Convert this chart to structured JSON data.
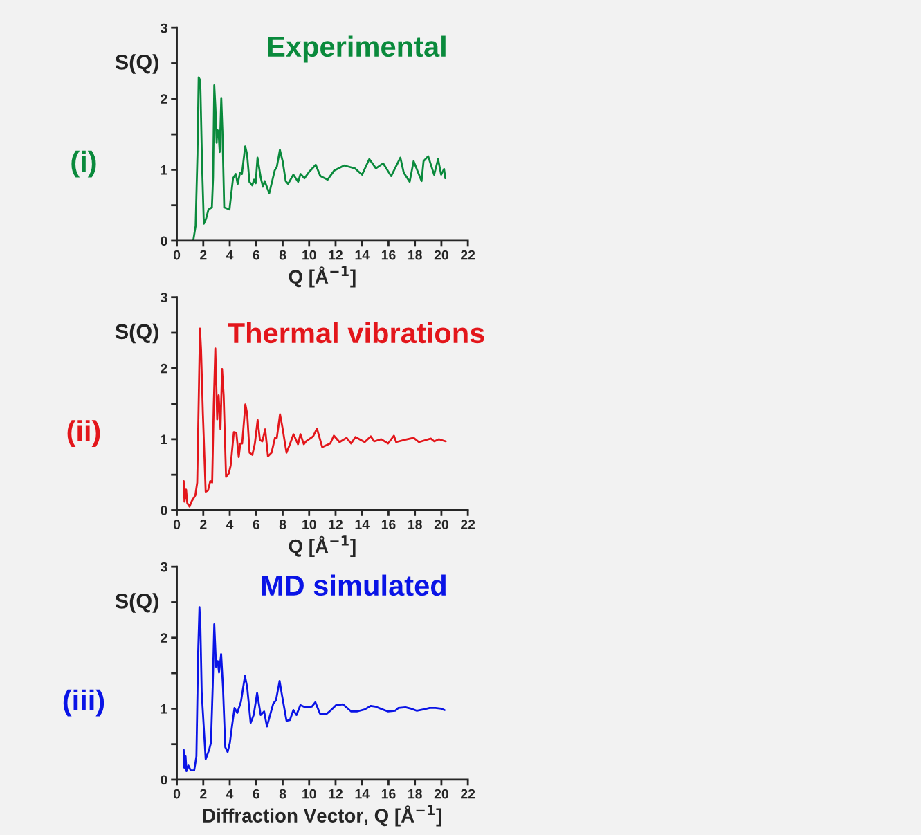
{
  "chart_data": [
    {
      "type": "line",
      "title": "Experimental",
      "ylabel": "S(Q)",
      "xlabel": "Q [Å$^{−1}$]",
      "annotations": [
        "(i)"
      ],
      "xlim": [
        0,
        22
      ],
      "xticks": [
        0,
        2,
        4,
        6,
        8,
        10,
        12,
        14,
        16,
        18,
        20,
        22
      ],
      "ylim": [
        0,
        3
      ],
      "yticks": [
        0,
        {
          "value": 0.5,
          "label": null
        },
        1,
        {
          "value": 1.5,
          "label": null
        },
        2,
        {
          "value": 2.5,
          "label": null
        },
        3
      ],
      "grid": false,
      "legend": false,
      "series": [
        {
          "color": "#0a8a3c",
          "x": [
            1.24,
            1.42,
            1.56,
            1.65,
            1.77,
            1.91,
            2.04,
            2.21,
            2.39,
            2.65,
            2.74,
            2.83,
            2.92,
            3.01,
            3.06,
            3.15,
            3.24,
            3.36,
            3.45,
            3.58,
            3.98,
            4.25,
            4.46,
            4.6,
            4.78,
            4.92,
            5.17,
            5.31,
            5.49,
            5.7,
            5.84,
            5.96,
            6.1,
            6.34,
            6.51,
            6.64,
            6.99,
            7.4,
            7.56,
            7.79,
            8.0,
            8.23,
            8.41,
            8.81,
            9.17,
            9.35,
            9.65,
            10.0,
            10.5,
            10.85,
            11.4,
            11.9,
            12.65,
            13.45,
            14.0,
            14.55,
            15.05,
            15.6,
            16.2,
            16.9,
            17.15,
            17.6,
            17.9,
            18.5,
            18.65,
            19.0,
            19.45,
            19.75,
            19.98,
            20.2,
            20.3
          ],
          "values": [
            0,
            0.21,
            1.22,
            2.3,
            2.26,
            1.06,
            0.24,
            0.31,
            0.44,
            0.47,
            0.89,
            2.19,
            1.87,
            1.38,
            1.56,
            1.54,
            1.25,
            2.01,
            1.54,
            0.47,
            0.44,
            0.88,
            0.94,
            0.8,
            0.96,
            0.94,
            1.33,
            1.22,
            0.83,
            0.78,
            0.86,
            0.81,
            1.17,
            0.89,
            0.76,
            0.84,
            0.67,
            0.99,
            1.04,
            1.28,
            1.12,
            0.84,
            0.8,
            0.93,
            0.83,
            0.94,
            0.88,
            0.97,
            1.07,
            0.91,
            0.86,
            0.99,
            1.06,
            1.02,
            0.93,
            1.15,
            1.02,
            1.09,
            0.91,
            1.17,
            0.96,
            0.83,
            1.12,
            0.84,
            1.12,
            1.19,
            0.93,
            1.15,
            0.93,
            1.01,
            0.88
          ]
        }
      ]
    },
    {
      "type": "line",
      "title": "Thermal vibrations",
      "ylabel": "S(Q)",
      "xlabel": "Q [Å$^{−1}$]",
      "annotations": [
        "(ii)"
      ],
      "xlim": [
        0,
        22
      ],
      "xticks": [
        0,
        2,
        4,
        6,
        8,
        10,
        12,
        14,
        16,
        18,
        20,
        22
      ],
      "ylim": [
        0,
        3
      ],
      "yticks": [
        0,
        {
          "value": 0.5,
          "label": null
        },
        1,
        {
          "value": 1.5,
          "label": null
        },
        2,
        {
          "value": 2.5,
          "label": null
        },
        3
      ],
      "grid": false,
      "legend": false,
      "series": [
        {
          "color": "#e3161b",
          "x": [
            0.52,
            0.58,
            0.7,
            0.79,
            0.96,
            1.13,
            1.4,
            1.54,
            1.66,
            1.75,
            1.83,
            1.97,
            2.18,
            2.36,
            2.53,
            2.67,
            2.79,
            2.91,
            3.05,
            3.16,
            3.3,
            3.42,
            3.54,
            3.72,
            3.93,
            4.07,
            4.31,
            4.5,
            4.68,
            4.8,
            4.94,
            5.18,
            5.32,
            5.5,
            5.71,
            5.9,
            6.11,
            6.28,
            6.46,
            6.68,
            6.89,
            7.16,
            7.42,
            7.56,
            7.8,
            7.98,
            8.29,
            8.55,
            8.82,
            9.16,
            9.34,
            9.6,
            9.77,
            10.3,
            10.59,
            10.99,
            11.6,
            11.87,
            12.3,
            12.83,
            13.18,
            13.5,
            14.2,
            14.66,
            14.92,
            15.45,
            15.97,
            16.41,
            16.58,
            17.2,
            17.9,
            18.3,
            19.2,
            19.46,
            19.8,
            20.33
          ],
          "values": [
            0.41,
            0.12,
            0.29,
            0.1,
            0.05,
            0.13,
            0.21,
            0.39,
            1.62,
            2.56,
            2.27,
            1.36,
            0.26,
            0.28,
            0.41,
            0.39,
            1.48,
            2.28,
            1.28,
            1.62,
            1.14,
            1.99,
            1.62,
            0.47,
            0.52,
            0.63,
            1.1,
            1.09,
            0.75,
            0.94,
            0.94,
            1.49,
            1.36,
            0.81,
            0.78,
            0.94,
            1.27,
            0.99,
            0.97,
            1.14,
            0.76,
            0.81,
            1.02,
            1.02,
            1.35,
            1.17,
            0.81,
            0.93,
            1.07,
            0.93,
            1.07,
            0.93,
            0.97,
            1.04,
            1.15,
            0.89,
            0.94,
            1.05,
            0.96,
            1.02,
            0.94,
            1.03,
            0.96,
            1.04,
            0.97,
            1.0,
            0.94,
            1.05,
            0.96,
            0.99,
            1.02,
            0.96,
            1.01,
            0.97,
            1.0,
            0.97
          ]
        }
      ]
    },
    {
      "type": "line",
      "title": "MD simulated",
      "ylabel": "S(Q)",
      "xlabel": "Diffraction Vector, Q [Å$^{−1}$]",
      "annotations": [
        "(iii)"
      ],
      "xlim": [
        0,
        22
      ],
      "xticks": [
        0,
        2,
        4,
        6,
        8,
        10,
        12,
        14,
        16,
        18,
        20,
        22
      ],
      "ylim": [
        0,
        3
      ],
      "yticks": [
        0,
        {
          "value": 0.5,
          "label": null
        },
        1,
        {
          "value": 1.5,
          "label": null
        },
        2,
        {
          "value": 2.5,
          "label": null
        },
        3
      ],
      "grid": false,
      "legend": false,
      "series": [
        {
          "color": "#0a14e6",
          "x": [
            0.52,
            0.56,
            0.66,
            0.73,
            0.87,
            1.05,
            1.31,
            1.4,
            1.48,
            1.61,
            1.71,
            1.78,
            1.88,
            2.18,
            2.44,
            2.58,
            2.71,
            2.83,
            2.97,
            3.09,
            3.19,
            3.35,
            3.49,
            3.66,
            3.84,
            4.01,
            4.19,
            4.36,
            4.57,
            4.85,
            5.15,
            5.32,
            5.58,
            5.81,
            6.07,
            6.34,
            6.6,
            6.81,
            7.29,
            7.5,
            7.77,
            7.94,
            8.29,
            8.55,
            8.81,
            9.04,
            9.34,
            9.69,
            10.21,
            10.47,
            10.82,
            11.34,
            11.6,
            12.04,
            12.57,
            13.18,
            13.61,
            14.22,
            14.66,
            15.0,
            15.53,
            15.97,
            16.5,
            16.75,
            17.28,
            17.71,
            18.15,
            18.67,
            19.11,
            19.55,
            19.98,
            20.24
          ],
          "values": [
            0.42,
            0.17,
            0.33,
            0.12,
            0.2,
            0.13,
            0.13,
            0.23,
            0.33,
            1.78,
            2.43,
            2.17,
            1.23,
            0.29,
            0.42,
            0.52,
            1.3,
            2.19,
            1.59,
            1.67,
            1.51,
            1.77,
            1.3,
            0.46,
            0.39,
            0.52,
            0.78,
            1.01,
            0.94,
            1.1,
            1.46,
            1.3,
            0.8,
            0.91,
            1.22,
            0.91,
            0.96,
            0.75,
            1.07,
            1.12,
            1.39,
            1.2,
            0.83,
            0.84,
            0.98,
            0.91,
            1.05,
            1.02,
            1.03,
            1.09,
            0.93,
            0.93,
            0.97,
            1.05,
            1.06,
            0.96,
            0.96,
            0.99,
            1.04,
            1.03,
            0.99,
            0.96,
            0.97,
            1.01,
            1.02,
            1.0,
            0.97,
            0.99,
            1.01,
            1.01,
            1.0,
            0.98
          ]
        }
      ]
    }
  ]
}
